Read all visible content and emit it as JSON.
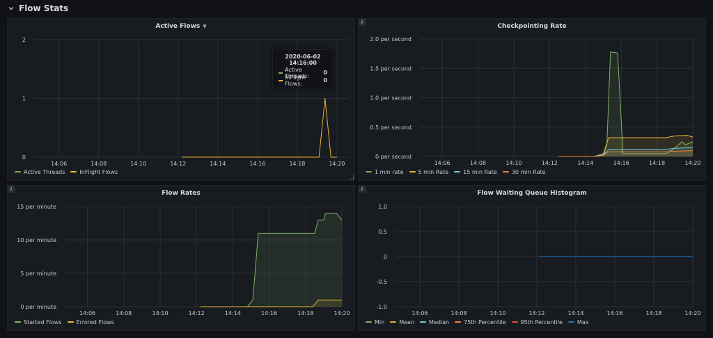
{
  "row": {
    "title": "Flow Stats"
  },
  "tooltip": {
    "time": "2020-06-02 14:16:00",
    "items": [
      {
        "label": "Active Threads:",
        "value": "0",
        "color": "#7eb26d"
      },
      {
        "label": "InFlight Flows:",
        "value": "0",
        "color": "#eab839"
      }
    ]
  },
  "panels": [
    {
      "title": "Active Flows",
      "has_caret": true,
      "has_info": false,
      "legend": [
        {
          "name": "Active Threads",
          "color": "#7eb26d"
        },
        {
          "name": "InFlight Flows",
          "color": "#eab839"
        }
      ]
    },
    {
      "title": "Checkpointing Rate",
      "has_caret": false,
      "has_info": true,
      "legend": [
        {
          "name": "1 min rate",
          "color": "#7eb26d"
        },
        {
          "name": "5 min Rate",
          "color": "#eab839"
        },
        {
          "name": "15 min Rate",
          "color": "#6ed0e0"
        },
        {
          "name": "30 min Rate",
          "color": "#ef843c"
        }
      ]
    },
    {
      "title": "Flow Rates",
      "has_caret": false,
      "has_info": true,
      "legend": [
        {
          "name": "Started Flows",
          "color": "#7eb26d"
        },
        {
          "name": "Errored Flows",
          "color": "#eab839"
        }
      ]
    },
    {
      "title": "Flow Waiting Queue Histogram",
      "has_caret": false,
      "has_info": true,
      "legend": [
        {
          "name": "Min",
          "color": "#7eb26d"
        },
        {
          "name": "Mean",
          "color": "#eab839"
        },
        {
          "name": "Median",
          "color": "#6ed0e0"
        },
        {
          "name": "75th Percentile",
          "color": "#ef843c"
        },
        {
          "name": "95th Percentile",
          "color": "#e24d42"
        },
        {
          "name": "Max",
          "color": "#1f78c1"
        }
      ]
    }
  ],
  "chart_data": [
    {
      "type": "line",
      "title": "Active Flows",
      "x_ticks": [
        "14:06",
        "14:08",
        "14:10",
        "14:12",
        "14:14",
        "14:16",
        "14:18",
        "14:20"
      ],
      "x_range_min": [
        -15.25,
        0.6
      ],
      "y_ticks": [
        "0",
        "1",
        "2"
      ],
      "ylim": [
        0,
        2
      ],
      "grid": true,
      "legend": "bottom-left",
      "series": [
        {
          "name": "Active Threads",
          "color": "#7eb26d",
          "fill": false,
          "points": []
        },
        {
          "name": "InFlight Flows",
          "color": "#eab839",
          "fill": false,
          "points": [
            [
              -7.8,
              0
            ],
            [
              -0.9,
              0
            ],
            [
              -0.6,
              1
            ],
            [
              -0.3,
              0
            ],
            [
              0,
              0
            ]
          ]
        }
      ]
    },
    {
      "type": "line",
      "title": "Checkpointing Rate",
      "x_ticks": [
        "14:06",
        "14:08",
        "14:10",
        "14:12",
        "14:14",
        "14:16",
        "14:18",
        "14:20"
      ],
      "x_range_min": [
        -15.25,
        0
      ],
      "y_ticks": [
        "0 per second",
        "0.5 per second",
        "1.0 per second",
        "1.5 per second",
        "2.0 per second"
      ],
      "ylim": [
        0,
        2
      ],
      "grid": true,
      "legend": "bottom-left",
      "series": [
        {
          "name": "1 min rate",
          "color": "#7eb26d",
          "fill": true,
          "points": [
            [
              -7.5,
              0
            ],
            [
              -5.5,
              0
            ],
            [
              -5,
              0.02
            ],
            [
              -4.8,
              0.2
            ],
            [
              -4.6,
              1.78
            ],
            [
              -4.2,
              1.76
            ],
            [
              -3.9,
              0.05
            ],
            [
              -1.5,
              0.05
            ],
            [
              -1.2,
              0.1
            ],
            [
              -0.8,
              0.2
            ],
            [
              -0.6,
              0.25
            ],
            [
              -0.4,
              0.2
            ],
            [
              0,
              0.25
            ]
          ]
        },
        {
          "name": "5 min Rate",
          "color": "#eab839",
          "fill": true,
          "points": [
            [
              -7.5,
              0
            ],
            [
              -5.5,
              0
            ],
            [
              -5,
              0.05
            ],
            [
              -4.7,
              0.32
            ],
            [
              -1.5,
              0.32
            ],
            [
              -1,
              0.35
            ],
            [
              -0.3,
              0.36
            ],
            [
              0,
              0.33
            ]
          ]
        },
        {
          "name": "15 min Rate",
          "color": "#6ed0e0",
          "fill": true,
          "points": [
            [
              -7.5,
              0
            ],
            [
              -5.5,
              0
            ],
            [
              -5,
              0.03
            ],
            [
              -4.7,
              0.12
            ],
            [
              -1.5,
              0.12
            ],
            [
              -1,
              0.14
            ],
            [
              0,
              0.15
            ]
          ]
        },
        {
          "name": "30 min Rate",
          "color": "#ef843c",
          "fill": true,
          "points": [
            [
              -7.5,
              0
            ],
            [
              -5.5,
              0
            ],
            [
              -5,
              0.02
            ],
            [
              -4.7,
              0.08
            ],
            [
              -1.5,
              0.08
            ],
            [
              -1,
              0.09
            ],
            [
              0,
              0.1
            ]
          ]
        }
      ]
    },
    {
      "type": "line",
      "title": "Flow Rates",
      "x_ticks": [
        "14:06",
        "14:08",
        "14:10",
        "14:12",
        "14:14",
        "14:16",
        "14:18",
        "14:20"
      ],
      "x_range_min": [
        -15.25,
        0
      ],
      "y_ticks": [
        "0 per minute",
        "5 per minute",
        "10 per minute",
        "15 per minute"
      ],
      "ylim": [
        0,
        15
      ],
      "grid": true,
      "legend": "bottom-left",
      "series": [
        {
          "name": "Started Flows",
          "color": "#7eb26d",
          "fill": true,
          "points": [
            [
              -7.8,
              0
            ],
            [
              -5.2,
              0
            ],
            [
              -4.9,
              1
            ],
            [
              -4.6,
              11
            ],
            [
              -1.5,
              11
            ],
            [
              -1.3,
              13
            ],
            [
              -1,
              13
            ],
            [
              -0.9,
              14
            ],
            [
              -0.3,
              14
            ],
            [
              0,
              13
            ]
          ]
        },
        {
          "name": "Errored Flows",
          "color": "#eab839",
          "fill": true,
          "points": [
            [
              -7.8,
              0
            ],
            [
              -1.6,
              0
            ],
            [
              -1.3,
              1
            ],
            [
              0,
              1
            ]
          ]
        }
      ]
    },
    {
      "type": "line",
      "title": "Flow Waiting Queue Histogram",
      "x_ticks": [
        "14:06",
        "14:08",
        "14:10",
        "14:12",
        "14:14",
        "14:16",
        "14:18",
        "14:20"
      ],
      "x_range_min": [
        -15.25,
        0
      ],
      "y_ticks": [
        "-1.0",
        "-0.5",
        "0",
        "0.5",
        "1.0"
      ],
      "ylim": [
        -1,
        1
      ],
      "grid": true,
      "legend": "bottom-left",
      "series": [
        {
          "name": "Max",
          "color": "#1f78c1",
          "fill": false,
          "points": [
            [
              -7.9,
              0
            ],
            [
              0,
              0
            ]
          ]
        }
      ]
    }
  ]
}
